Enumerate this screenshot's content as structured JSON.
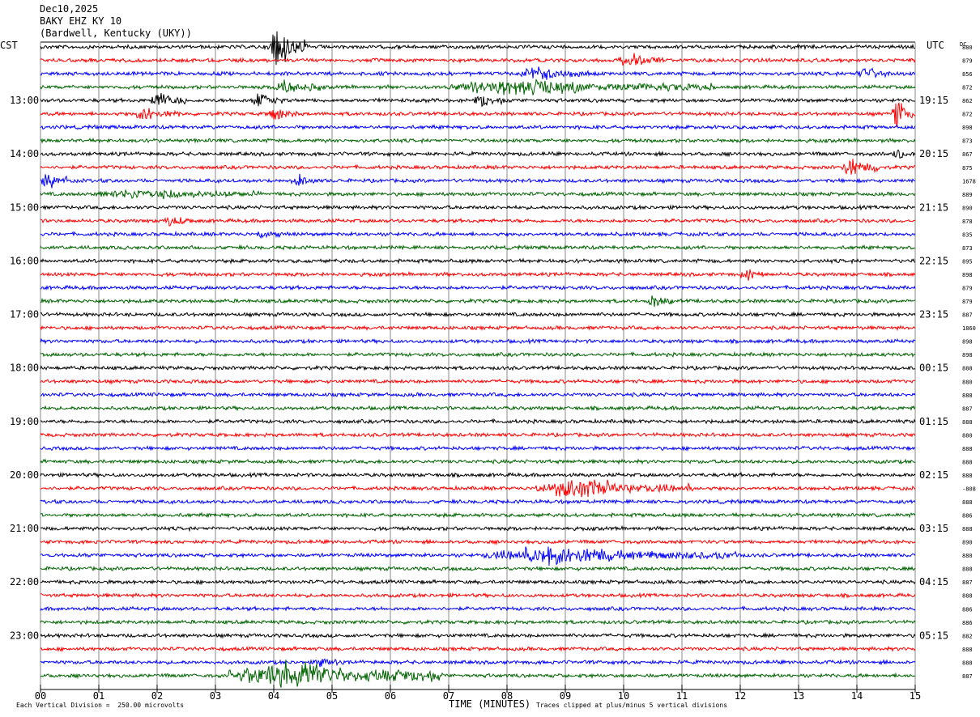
{
  "header": {
    "date": "Dec10,2025",
    "station": "BAKY EHZ KY 10",
    "location": "(Bardwell, Kentucky (UKY))"
  },
  "left_timezone": "CST",
  "right_timezone": "UTC",
  "dc_label": "DC",
  "footer": {
    "scale_note": "Each Vertical Division =  250.00 microvolts",
    "clip_note": "Traces clipped at plus/minus 5 vertical divisions"
  },
  "colors": {
    "trace_cycle": [
      "#000000",
      "#ff0000",
      "#0000ff",
      "#006400"
    ],
    "grid": "#000000"
  },
  "chart_data": {
    "type": "line",
    "xlabel": "TIME (MINUTES)",
    "xlim": [
      0,
      15
    ],
    "x_ticks": [
      "00",
      "01",
      "02",
      "03",
      "04",
      "05",
      "06",
      "07",
      "08",
      "09",
      "10",
      "11",
      "12",
      "13",
      "14",
      "15"
    ],
    "rows_per_hour": 4,
    "row_count": 48,
    "left_hour_labels": [
      "13:00",
      "14:00",
      "15:00",
      "16:00",
      "17:00",
      "18:00",
      "19:00",
      "20:00",
      "21:00",
      "22:00",
      "23:00"
    ],
    "right_hour_labels": [
      "19:15",
      "20:15",
      "21:15",
      "22:15",
      "23:15",
      "00:15",
      "01:15",
      "02:15",
      "03:15",
      "04:15",
      "05:15"
    ],
    "dc_offsets": [
      "880",
      "879",
      "856",
      "872",
      "862",
      "872",
      "898",
      "873",
      "867",
      "875",
      "1678",
      "889",
      "890",
      "878",
      "835",
      "873",
      "895",
      "898",
      "879",
      "879",
      "887",
      "1860",
      "898",
      "898",
      "888",
      "880",
      "888",
      "887",
      "888",
      "880",
      "888",
      "888",
      "888",
      "-808",
      "888",
      "886",
      "888",
      "890",
      "880",
      "888",
      "887",
      "888",
      "886",
      "886",
      "882",
      "888",
      "888",
      "887"
    ],
    "events": [
      {
        "row": 0,
        "minute_start": 3.9,
        "minute_end": 4.6,
        "amp": 5
      },
      {
        "row": 1,
        "minute_start": 9.9,
        "minute_end": 10.7,
        "amp": 1.6
      },
      {
        "row": 2,
        "minute_start": 8.2,
        "minute_end": 9.4,
        "amp": 1.8
      },
      {
        "row": 2,
        "minute_start": 14.0,
        "minute_end": 14.6,
        "amp": 1.6
      },
      {
        "row": 3,
        "minute_start": 4.0,
        "minute_end": 4.8,
        "amp": 1.8
      },
      {
        "row": 3,
        "minute_start": 7.0,
        "minute_end": 11.5,
        "amp": 2.0
      },
      {
        "row": 4,
        "minute_start": 1.9,
        "minute_end": 2.5,
        "amp": 2.3
      },
      {
        "row": 4,
        "minute_start": 3.6,
        "minute_end": 4.2,
        "amp": 1.8
      },
      {
        "row": 4,
        "minute_start": 7.4,
        "minute_end": 8.0,
        "amp": 1.6
      },
      {
        "row": 5,
        "minute_start": 1.6,
        "minute_end": 2.4,
        "amp": 1.8
      },
      {
        "row": 5,
        "minute_start": 3.9,
        "minute_end": 4.4,
        "amp": 1.7
      },
      {
        "row": 5,
        "minute_start": 14.6,
        "minute_end": 15.0,
        "amp": 3.5
      },
      {
        "row": 8,
        "minute_start": 14.6,
        "minute_end": 15.0,
        "amp": 1.5
      },
      {
        "row": 9,
        "minute_start": 13.7,
        "minute_end": 14.4,
        "amp": 2.6
      },
      {
        "row": 10,
        "minute_start": 0.0,
        "minute_end": 0.5,
        "amp": 2.2
      },
      {
        "row": 10,
        "minute_start": 4.3,
        "minute_end": 4.7,
        "amp": 1.6
      },
      {
        "row": 11,
        "minute_start": 1.0,
        "minute_end": 3.8,
        "amp": 1.2
      },
      {
        "row": 13,
        "minute_start": 2.1,
        "minute_end": 2.6,
        "amp": 1.5
      },
      {
        "row": 14,
        "minute_start": 3.7,
        "minute_end": 4.1,
        "amp": 1.5
      },
      {
        "row": 17,
        "minute_start": 12.0,
        "minute_end": 12.4,
        "amp": 1.6
      },
      {
        "row": 19,
        "minute_start": 10.4,
        "minute_end": 10.9,
        "amp": 1.3
      },
      {
        "row": 33,
        "minute_start": 8.5,
        "minute_end": 11.2,
        "amp": 2.5
      },
      {
        "row": 38,
        "minute_start": 7.6,
        "minute_end": 12.0,
        "amp": 2.2
      },
      {
        "row": 47,
        "minute_start": 3.2,
        "minute_end": 6.9,
        "amp": 4.0
      },
      {
        "row": 46,
        "minute_start": 4.7,
        "minute_end": 5.1,
        "amp": 1.4
      }
    ]
  }
}
